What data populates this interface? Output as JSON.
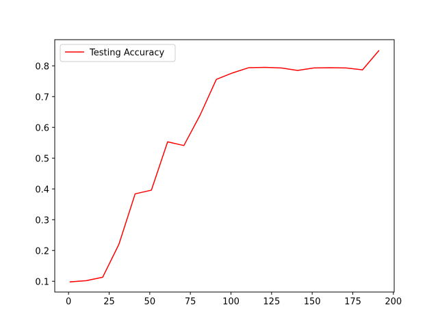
{
  "chart_data": {
    "type": "line",
    "title": "",
    "xlabel": "",
    "ylabel": "",
    "xlim": [
      -8.5,
      200.5
    ],
    "ylim": [
      0.065,
      0.885
    ],
    "x_ticks": [
      0,
      25,
      50,
      75,
      100,
      125,
      150,
      175,
      200
    ],
    "y_ticks": [
      0.1,
      0.2,
      0.3,
      0.4,
      0.5,
      0.6,
      0.7,
      0.8
    ],
    "grid": false,
    "legend": {
      "position": "top-left"
    },
    "series": [
      {
        "name": "Testing Accuracy",
        "color": "#ff0000",
        "x": [
          1,
          11,
          21,
          31,
          41,
          51,
          61,
          71,
          81,
          91,
          101,
          111,
          121,
          131,
          141,
          151,
          161,
          171,
          181,
          191
        ],
        "y": [
          0.098,
          0.102,
          0.113,
          0.22,
          0.384,
          0.396,
          0.553,
          0.541,
          0.64,
          0.756,
          0.777,
          0.794,
          0.795,
          0.793,
          0.785,
          0.793,
          0.794,
          0.793,
          0.787,
          0.849
        ]
      }
    ]
  }
}
